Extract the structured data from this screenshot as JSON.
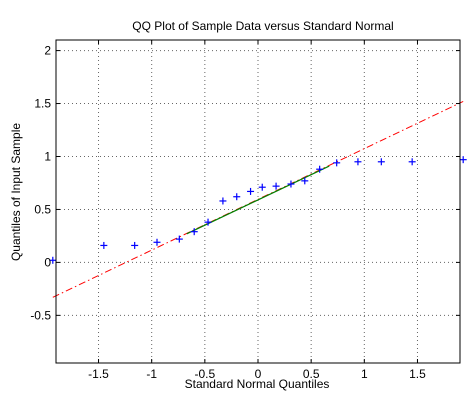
{
  "chart_data": {
    "type": "scatter",
    "title": "QQ Plot of Sample Data versus Standard Normal",
    "xlabel": "Standard Normal Quantiles",
    "ylabel": "Quantiles of Input Sample",
    "xlim": [
      -1.9,
      1.9
    ],
    "ylim": [
      -0.95,
      2.1
    ],
    "x_ticks": [
      -1.5,
      -1,
      -0.5,
      0,
      0.5,
      1,
      1.5
    ],
    "x_tick_labels": [
      "-1.5",
      "-1",
      "-0.5",
      "0",
      "0.5",
      "1",
      "1.5"
    ],
    "y_ticks": [
      -0.5,
      0,
      0.5,
      1,
      1.5,
      2
    ],
    "y_tick_labels": [
      "-0.5",
      "0",
      "0.5",
      "1",
      "1.5",
      "2"
    ],
    "grid": true,
    "marker": "+",
    "points": [
      {
        "x": -1.93,
        "y": 0.02
      },
      {
        "x": -1.45,
        "y": 0.16
      },
      {
        "x": -1.16,
        "y": 0.16
      },
      {
        "x": -0.95,
        "y": 0.19
      },
      {
        "x": -0.74,
        "y": 0.22
      },
      {
        "x": -0.6,
        "y": 0.29
      },
      {
        "x": -0.47,
        "y": 0.38
      },
      {
        "x": -0.33,
        "y": 0.58
      },
      {
        "x": -0.2,
        "y": 0.62
      },
      {
        "x": -0.07,
        "y": 0.67
      },
      {
        "x": 0.04,
        "y": 0.71
      },
      {
        "x": 0.17,
        "y": 0.72
      },
      {
        "x": 0.31,
        "y": 0.74
      },
      {
        "x": 0.44,
        "y": 0.77
      },
      {
        "x": 0.58,
        "y": 0.88
      },
      {
        "x": 0.74,
        "y": 0.94
      },
      {
        "x": 0.94,
        "y": 0.95
      },
      {
        "x": 1.16,
        "y": 0.95
      },
      {
        "x": 1.45,
        "y": 0.95
      },
      {
        "x": 1.93,
        "y": 0.97
      }
    ],
    "reference_line": {
      "x": [
        -1.93,
        1.93
      ],
      "y": [
        -0.33,
        1.52
      ],
      "style": "dash-dot"
    },
    "fit_segment": {
      "x": [
        -0.67,
        0.67
      ],
      "y": [
        0.27,
        0.91
      ]
    },
    "colors": {
      "points": "#0000ff",
      "reference_line": "#ff0000",
      "fit_segment": "#008000",
      "grid": "#666666"
    }
  }
}
